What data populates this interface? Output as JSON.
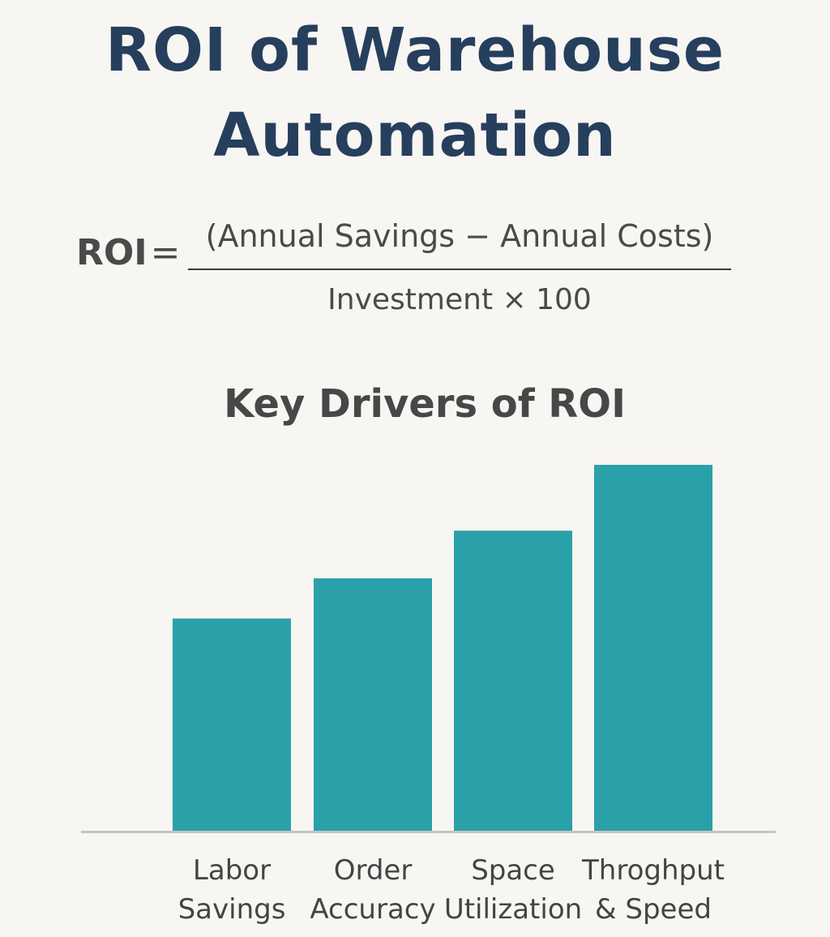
{
  "title": {
    "line1": "ROI of Warehouse",
    "line2": "Automation"
  },
  "formula": {
    "lhs": "ROI",
    "equals": "=",
    "numerator": "(Annual Savings − Annual Costs)",
    "denominator": "Investment × 100"
  },
  "colors": {
    "title": "#263f5c",
    "bar": "#2aa1a9",
    "baseline": "#c4c4c4",
    "text": "#444444",
    "background": "#f8f6f3"
  },
  "chart_data": {
    "type": "bar",
    "title": "Key Drivers of ROI",
    "categories": [
      [
        "Labor",
        "Savings"
      ],
      [
        "Order",
        "Accuracy"
      ],
      [
        "Space",
        "Utilization"
      ],
      [
        "Throghput",
        "& Speed"
      ]
    ],
    "values": [
      58,
      69,
      82,
      100
    ],
    "ylim": [
      0,
      100
    ],
    "y_axis_shown": false,
    "grid": false,
    "legend": "none"
  }
}
